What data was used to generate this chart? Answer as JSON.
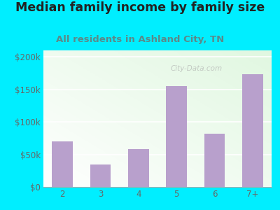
{
  "title": "Median family income by family size",
  "subtitle": "All residents in Ashland City, TN",
  "categories": [
    "2",
    "3",
    "4",
    "5",
    "6",
    "7+"
  ],
  "values": [
    70000,
    35000,
    58000,
    155000,
    82000,
    173000
  ],
  "bar_color": "#b8a0cc",
  "title_fontsize": 12.5,
  "subtitle_fontsize": 9.5,
  "title_color": "#222222",
  "subtitle_color": "#5a8a8a",
  "bg_outer": "#00eeff",
  "ylim": [
    0,
    210000
  ],
  "yticks": [
    0,
    50000,
    100000,
    150000,
    200000
  ],
  "ytick_labels": [
    "$0",
    "$50k",
    "$100k",
    "$150k",
    "$200k"
  ],
  "watermark": "City-Data.com",
  "tick_color": "#666666",
  "tick_fontsize": 8.5
}
